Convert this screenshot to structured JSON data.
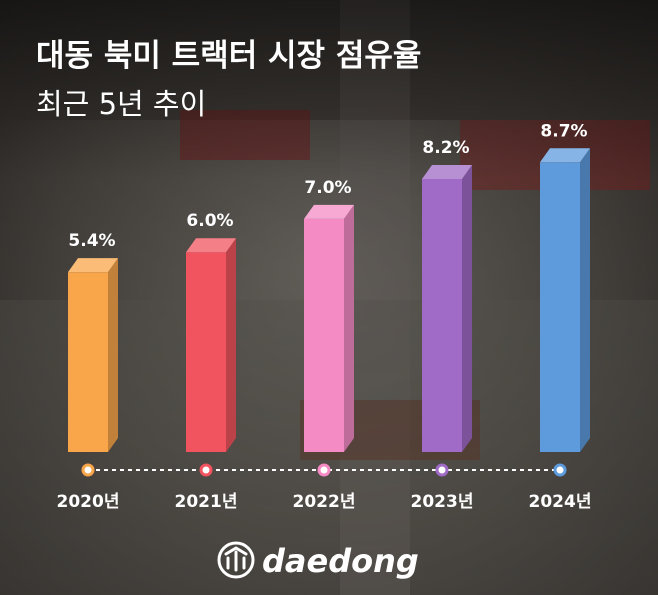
{
  "title": "대동 북미 트랙터 시장 점유율",
  "subtitle": "최근 5년 추이",
  "brand": "daedong",
  "chart_data": {
    "type": "bar",
    "title": "대동 북미 트랙터 시장 점유율",
    "subtitle": "최근 5년 추이",
    "categories": [
      "2020년",
      "2021년",
      "2022년",
      "2023년",
      "2024년"
    ],
    "values": [
      5.4,
      6.0,
      7.0,
      8.2,
      8.7
    ],
    "value_labels": [
      "5.4%",
      "6.0%",
      "7.0%",
      "8.2%",
      "8.7%"
    ],
    "unit": "%",
    "colors": [
      "#F9A54A",
      "#F1545F",
      "#F48BC4",
      "#9F6BC6",
      "#5E9BDD"
    ],
    "grid": false,
    "legend": "none"
  }
}
